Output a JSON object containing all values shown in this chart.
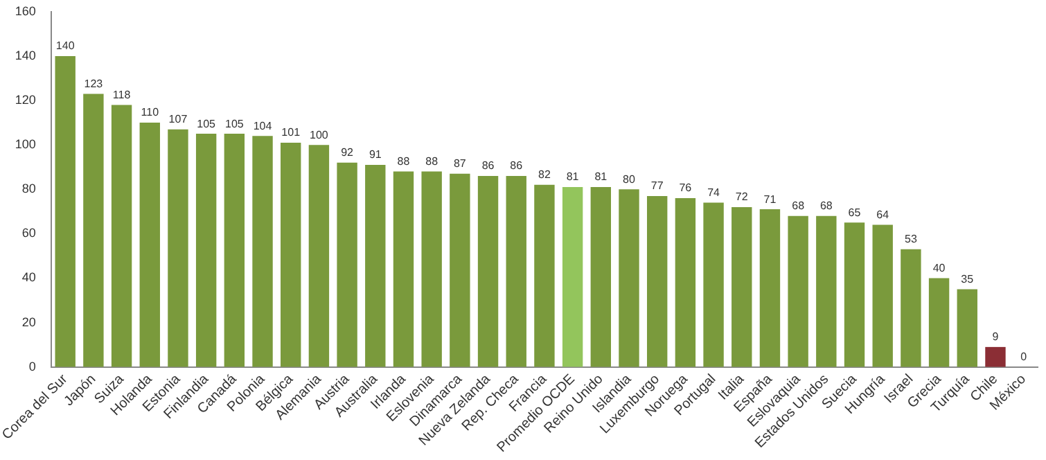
{
  "chart_data": {
    "type": "bar",
    "categories": [
      "Corea del Sur",
      "Japón",
      "Suiza",
      "Holanda",
      "Estonia",
      "Finlandia",
      "Canadá",
      "Polonia",
      "Bélgica",
      "Alemania",
      "Austria",
      "Australia",
      "Irlanda",
      "Eslovenia",
      "Dinamarca",
      "Nueva Zelanda",
      "Rep. Checa",
      "Francia",
      "Promedio OCDE",
      "Reino Unido",
      "Islandia",
      "Luxemburgo",
      "Noruega",
      "Portugal",
      "Italia",
      "España",
      "Eslovaquia",
      "Estados Unidos",
      "Suecia",
      "Hungría",
      "Israel",
      "Grecia",
      "Turquía",
      "Chile",
      "México"
    ],
    "values": [
      140,
      123,
      118,
      110,
      107,
      105,
      105,
      104,
      101,
      100,
      92,
      91,
      88,
      88,
      87,
      86,
      86,
      82,
      81,
      81,
      80,
      77,
      76,
      74,
      72,
      71,
      68,
      68,
      65,
      64,
      53,
      40,
      35,
      9,
      0
    ],
    "colors": [
      "#7a9a3c",
      "#7a9a3c",
      "#7a9a3c",
      "#7a9a3c",
      "#7a9a3c",
      "#7a9a3c",
      "#7a9a3c",
      "#7a9a3c",
      "#7a9a3c",
      "#7a9a3c",
      "#7a9a3c",
      "#7a9a3c",
      "#7a9a3c",
      "#7a9a3c",
      "#7a9a3c",
      "#7a9a3c",
      "#7a9a3c",
      "#7a9a3c",
      "#93c55c",
      "#7a9a3c",
      "#7a9a3c",
      "#7a9a3c",
      "#7a9a3c",
      "#7a9a3c",
      "#7a9a3c",
      "#7a9a3c",
      "#7a9a3c",
      "#7a9a3c",
      "#7a9a3c",
      "#7a9a3c",
      "#7a9a3c",
      "#7a9a3c",
      "#7a9a3c",
      "#8b2e35",
      "#7a9a3c"
    ],
    "ylim": [
      0,
      160
    ],
    "yticks": [
      0,
      20,
      40,
      60,
      80,
      100,
      120,
      140,
      160
    ],
    "grid": false,
    "legend": false,
    "data_labels": true
  }
}
